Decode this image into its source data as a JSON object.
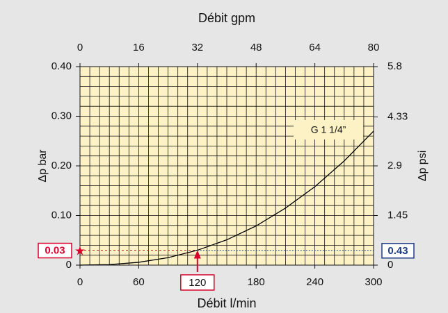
{
  "chart_data": {
    "type": "line",
    "x_label": "Débit l/min",
    "x2_label": "Débit gpm",
    "y_label": "Δp bar",
    "y2_label": "Δp psi",
    "x": [
      0,
      30,
      60,
      90,
      120,
      150,
      180,
      210,
      240,
      270,
      300
    ],
    "series": [
      {
        "name": "G 1 1/4”",
        "color": "#000000",
        "values": [
          0,
          0.0011,
          0.0057,
          0.015,
          0.03,
          0.051,
          0.079,
          0.115,
          0.158,
          0.21,
          0.27
        ]
      }
    ],
    "xlim": [
      0,
      300
    ],
    "xticks": [
      0,
      60,
      120,
      180,
      240,
      300
    ],
    "x2lim": [
      0,
      80
    ],
    "x2ticks": [
      0,
      16,
      32,
      48,
      64,
      80
    ],
    "ylim": [
      0,
      0.4
    ],
    "yticks": [
      0,
      {
        "value": 0.1,
        "label": "0.10"
      },
      {
        "value": 0.2,
        "label": "0.20"
      },
      {
        "value": 0.3,
        "label": "0.30"
      },
      {
        "value": 0.4,
        "label": "0.40"
      }
    ],
    "y2lim": [
      0,
      5.8
    ],
    "y2ticks": [
      0,
      1.45,
      2.9,
      4.33,
      5.8
    ],
    "reading": {
      "x": 120,
      "y": 0.03,
      "y2": 0.43
    },
    "grid": true
  }
}
